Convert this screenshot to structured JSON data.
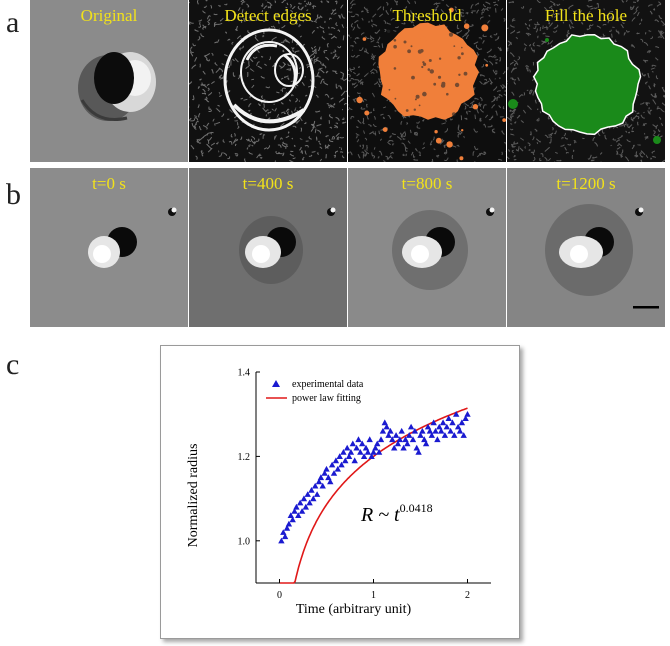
{
  "panels": {
    "a": {
      "letter": "a",
      "tiles": [
        {
          "label": "Original",
          "style": "original"
        },
        {
          "label": "Detect edges",
          "style": "edges"
        },
        {
          "label": "Threshold",
          "style": "threshold"
        },
        {
          "label": "Fill the hole",
          "style": "fill"
        }
      ]
    },
    "b": {
      "letter": "b",
      "tiles": [
        {
          "label": "t=0 s",
          "bg": "#8c8c8c"
        },
        {
          "label": "t=400 s",
          "bg": "#6f6f6f"
        },
        {
          "label": "t=800 s",
          "bg": "#8a8a8a"
        },
        {
          "label": "t=1200 s",
          "bg": "#858585"
        }
      ]
    },
    "c": {
      "letter": "c"
    }
  },
  "colors": {
    "label_yellow": "#f2e21a",
    "threshold_orange": "#f07f3a",
    "fill_green": "#1a8a1a",
    "data_blue": "#1a1ad0",
    "fit_red": "#e01818"
  },
  "chart_data": {
    "type": "scatter",
    "title": "",
    "xlabel": "Time (arbitrary unit)",
    "ylabel": "Normalized radius",
    "xlim": [
      -0.25,
      2.25
    ],
    "ylim": [
      0.9,
      1.4
    ],
    "xticks": [
      0,
      1,
      2
    ],
    "xtick_labels": [
      "0",
      "1",
      "2"
    ],
    "yticks": [
      1.0,
      1.2,
      1.4
    ],
    "ytick_labels": [
      "1.0",
      "1.2",
      "1.4"
    ],
    "grid": false,
    "legend_position": "top-left",
    "annotation_base": "R ~ t",
    "annotation_exponent": "0.0418",
    "series": [
      {
        "name": "experimental data",
        "marker": "triangle",
        "x": [
          0.02,
          0.04,
          0.06,
          0.08,
          0.1,
          0.12,
          0.14,
          0.16,
          0.18,
          0.2,
          0.22,
          0.24,
          0.26,
          0.28,
          0.3,
          0.32,
          0.34,
          0.36,
          0.38,
          0.4,
          0.42,
          0.44,
          0.46,
          0.48,
          0.5,
          0.52,
          0.54,
          0.56,
          0.58,
          0.6,
          0.62,
          0.64,
          0.66,
          0.68,
          0.7,
          0.72,
          0.74,
          0.76,
          0.78,
          0.8,
          0.82,
          0.84,
          0.86,
          0.88,
          0.9,
          0.92,
          0.94,
          0.96,
          0.98,
          1.0,
          1.02,
          1.04,
          1.06,
          1.08,
          1.1,
          1.12,
          1.14,
          1.16,
          1.18,
          1.2,
          1.22,
          1.24,
          1.26,
          1.28,
          1.3,
          1.32,
          1.34,
          1.36,
          1.38,
          1.4,
          1.42,
          1.44,
          1.46,
          1.48,
          1.5,
          1.52,
          1.54,
          1.56,
          1.58,
          1.6,
          1.62,
          1.64,
          1.66,
          1.68,
          1.7,
          1.72,
          1.74,
          1.76,
          1.78,
          1.8,
          1.82,
          1.84,
          1.86,
          1.88,
          1.9,
          1.92,
          1.94,
          1.96,
          1.98,
          2.0
        ],
        "values": [
          1.0,
          1.02,
          1.01,
          1.03,
          1.04,
          1.06,
          1.05,
          1.07,
          1.08,
          1.06,
          1.09,
          1.07,
          1.1,
          1.08,
          1.11,
          1.09,
          1.12,
          1.1,
          1.13,
          1.11,
          1.14,
          1.15,
          1.13,
          1.16,
          1.17,
          1.15,
          1.14,
          1.18,
          1.16,
          1.19,
          1.17,
          1.2,
          1.18,
          1.21,
          1.19,
          1.22,
          1.2,
          1.21,
          1.23,
          1.19,
          1.22,
          1.24,
          1.21,
          1.23,
          1.2,
          1.22,
          1.21,
          1.24,
          1.2,
          1.21,
          1.22,
          1.23,
          1.21,
          1.24,
          1.26,
          1.28,
          1.27,
          1.25,
          1.26,
          1.24,
          1.22,
          1.25,
          1.23,
          1.24,
          1.26,
          1.22,
          1.24,
          1.23,
          1.25,
          1.27,
          1.24,
          1.26,
          1.22,
          1.21,
          1.25,
          1.26,
          1.24,
          1.23,
          1.27,
          1.26,
          1.25,
          1.28,
          1.26,
          1.24,
          1.27,
          1.26,
          1.28,
          1.25,
          1.27,
          1.29,
          1.26,
          1.28,
          1.25,
          1.3,
          1.27,
          1.26,
          1.28,
          1.25,
          1.29,
          1.3
        ]
      },
      {
        "name": "power law fitting",
        "exponent": 0.0418
      }
    ]
  }
}
